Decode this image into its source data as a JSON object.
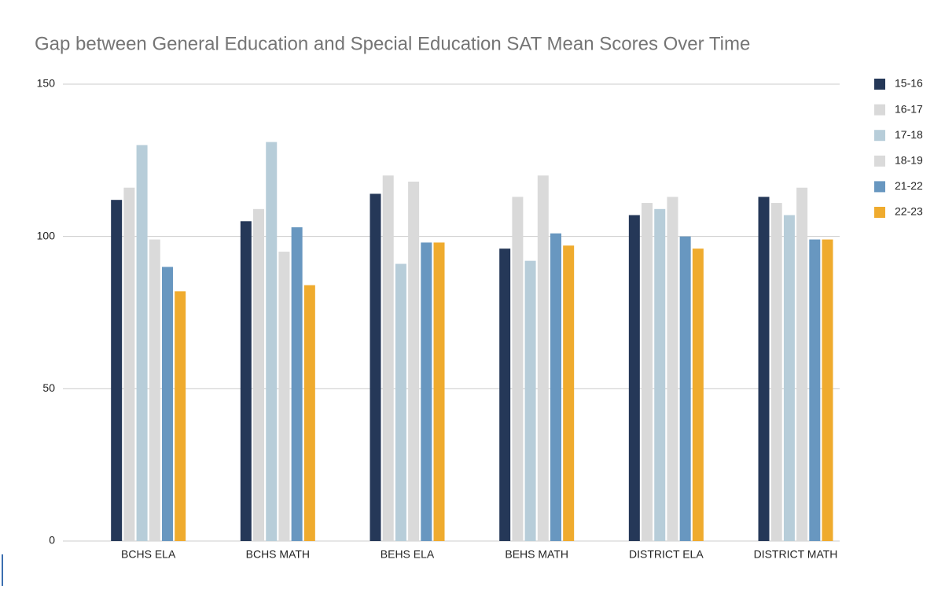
{
  "chart_data": {
    "type": "bar",
    "title": "Gap between General Education and Special Education SAT Mean Scores Over Time",
    "categories": [
      "BCHS ELA",
      "BCHS MATH",
      "BEHS ELA",
      "BEHS MATH",
      "DISTRICT ELA",
      "DISTRICT MATH"
    ],
    "series": [
      {
        "name": "15-16",
        "color": "#253858",
        "values": [
          112,
          105,
          114,
          96,
          107,
          113
        ]
      },
      {
        "name": "16-17",
        "color": "#d9d9d9",
        "values": [
          116,
          109,
          120,
          113,
          111,
          111
        ]
      },
      {
        "name": "17-18",
        "color": "#b7cdd9",
        "values": [
          130,
          131,
          91,
          92,
          109,
          107
        ]
      },
      {
        "name": "18-19",
        "color": "#dadada",
        "values": [
          99,
          95,
          118,
          120,
          113,
          116
        ]
      },
      {
        "name": "21-22",
        "color": "#6897c0",
        "values": [
          90,
          103,
          98,
          101,
          100,
          99
        ]
      },
      {
        "name": "22-23",
        "color": "#efab2e",
        "values": [
          82,
          84,
          98,
          97,
          96,
          99
        ]
      }
    ],
    "ylim": [
      0,
      150
    ],
    "yticks": [
      0,
      50,
      100,
      150
    ],
    "grid": true,
    "legend": "right"
  }
}
